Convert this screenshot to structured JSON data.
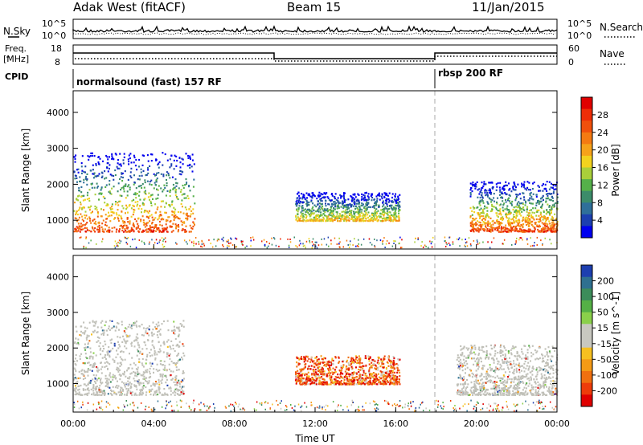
{
  "header": {
    "station": "Adak West (fitACF)",
    "beam": "Beam 15",
    "date": "11/Jan/2015"
  },
  "panels": {
    "nsky_label": "N.Sky",
    "nsky_ticks": [
      "10^5",
      "10^0"
    ],
    "nsearch_label": "N.Search",
    "nsearch_ticks": [
      "10^5",
      "10^0"
    ],
    "freq_label_line1": "Freq.",
    "freq_label_line2": "[MHz]",
    "freq_ticks": [
      "18",
      "8"
    ],
    "nave_label": "Nave",
    "nave_ticks": [
      "60",
      "0"
    ],
    "cpid_label": "CPID",
    "cpid_segments": [
      "normalsound (fast) 157 RF",
      "rbsp 200 RF"
    ]
  },
  "colors": {
    "power_scale": [
      "#0000ee",
      "#1c3fb0",
      "#2f6f9a",
      "#3c8c6a",
      "#55b04a",
      "#a9cf3a",
      "#f2d21e",
      "#f6a21a",
      "#f47a12",
      "#f0500c",
      "#ee2d08",
      "#e00000"
    ],
    "velocity_scale": [
      "#1d3fb0",
      "#2f7090",
      "#3c8c5a",
      "#55b046",
      "#8ad04a",
      "#c8c8c0",
      "#c8c8c0",
      "#f6c020",
      "#f49a16",
      "#f07010",
      "#ee3c0a",
      "#e00000"
    ],
    "ground_scatter": "#c0c0b8"
  },
  "chart_data": [
    {
      "type": "heatmap",
      "title": "",
      "xlabel": "",
      "ylabel": "Slant Range [km]",
      "xlim": [
        "00:00",
        "00:00"
      ],
      "ylim": [
        200,
        4600
      ],
      "yticks": [
        "1000",
        "2000",
        "3000",
        "4000"
      ],
      "colorbar_label": "Power [dB]",
      "colorbar_ticks": [
        "4",
        "8",
        "12",
        "16",
        "20",
        "24",
        "28"
      ],
      "features": [
        {
          "start": "00:00",
          "end": "06:00",
          "range_km": [
            700,
            2900
          ],
          "peak_db": 30
        },
        {
          "start": "11:00",
          "end": "16:10",
          "range_km": [
            1000,
            1800
          ],
          "peak_db": 22
        },
        {
          "start": "19:40",
          "end": "24:00",
          "range_km": [
            700,
            2100
          ],
          "peak_db": 30
        }
      ]
    },
    {
      "type": "heatmap",
      "title": "",
      "xlabel": "Time UT",
      "ylabel": "Slant Range [km]",
      "xlim": [
        "00:00",
        "00:00"
      ],
      "ylim": [
        200,
        4600
      ],
      "xticks": [
        "00:00",
        "04:00",
        "08:00",
        "12:00",
        "16:00",
        "20:00",
        "00:00"
      ],
      "yticks": [
        "1000",
        "2000",
        "3000",
        "4000"
      ],
      "colorbar_label": "Velocity [m s^-1]",
      "colorbar_ticks": [
        "200",
        "100",
        "50",
        "15",
        "-15",
        "-50",
        "-100",
        "-200"
      ],
      "features": [
        {
          "start": "00:00",
          "end": "05:30",
          "range_km": [
            700,
            2800
          ],
          "velocity_ms": 0,
          "ground_scatter": true
        },
        {
          "start": "11:00",
          "end": "16:10",
          "range_km": [
            1000,
            1800
          ],
          "velocity_ms": -200
        },
        {
          "start": "19:00",
          "end": "24:00",
          "range_km": [
            700,
            2100
          ],
          "velocity_ms": 0,
          "ground_scatter": true
        }
      ]
    }
  ]
}
